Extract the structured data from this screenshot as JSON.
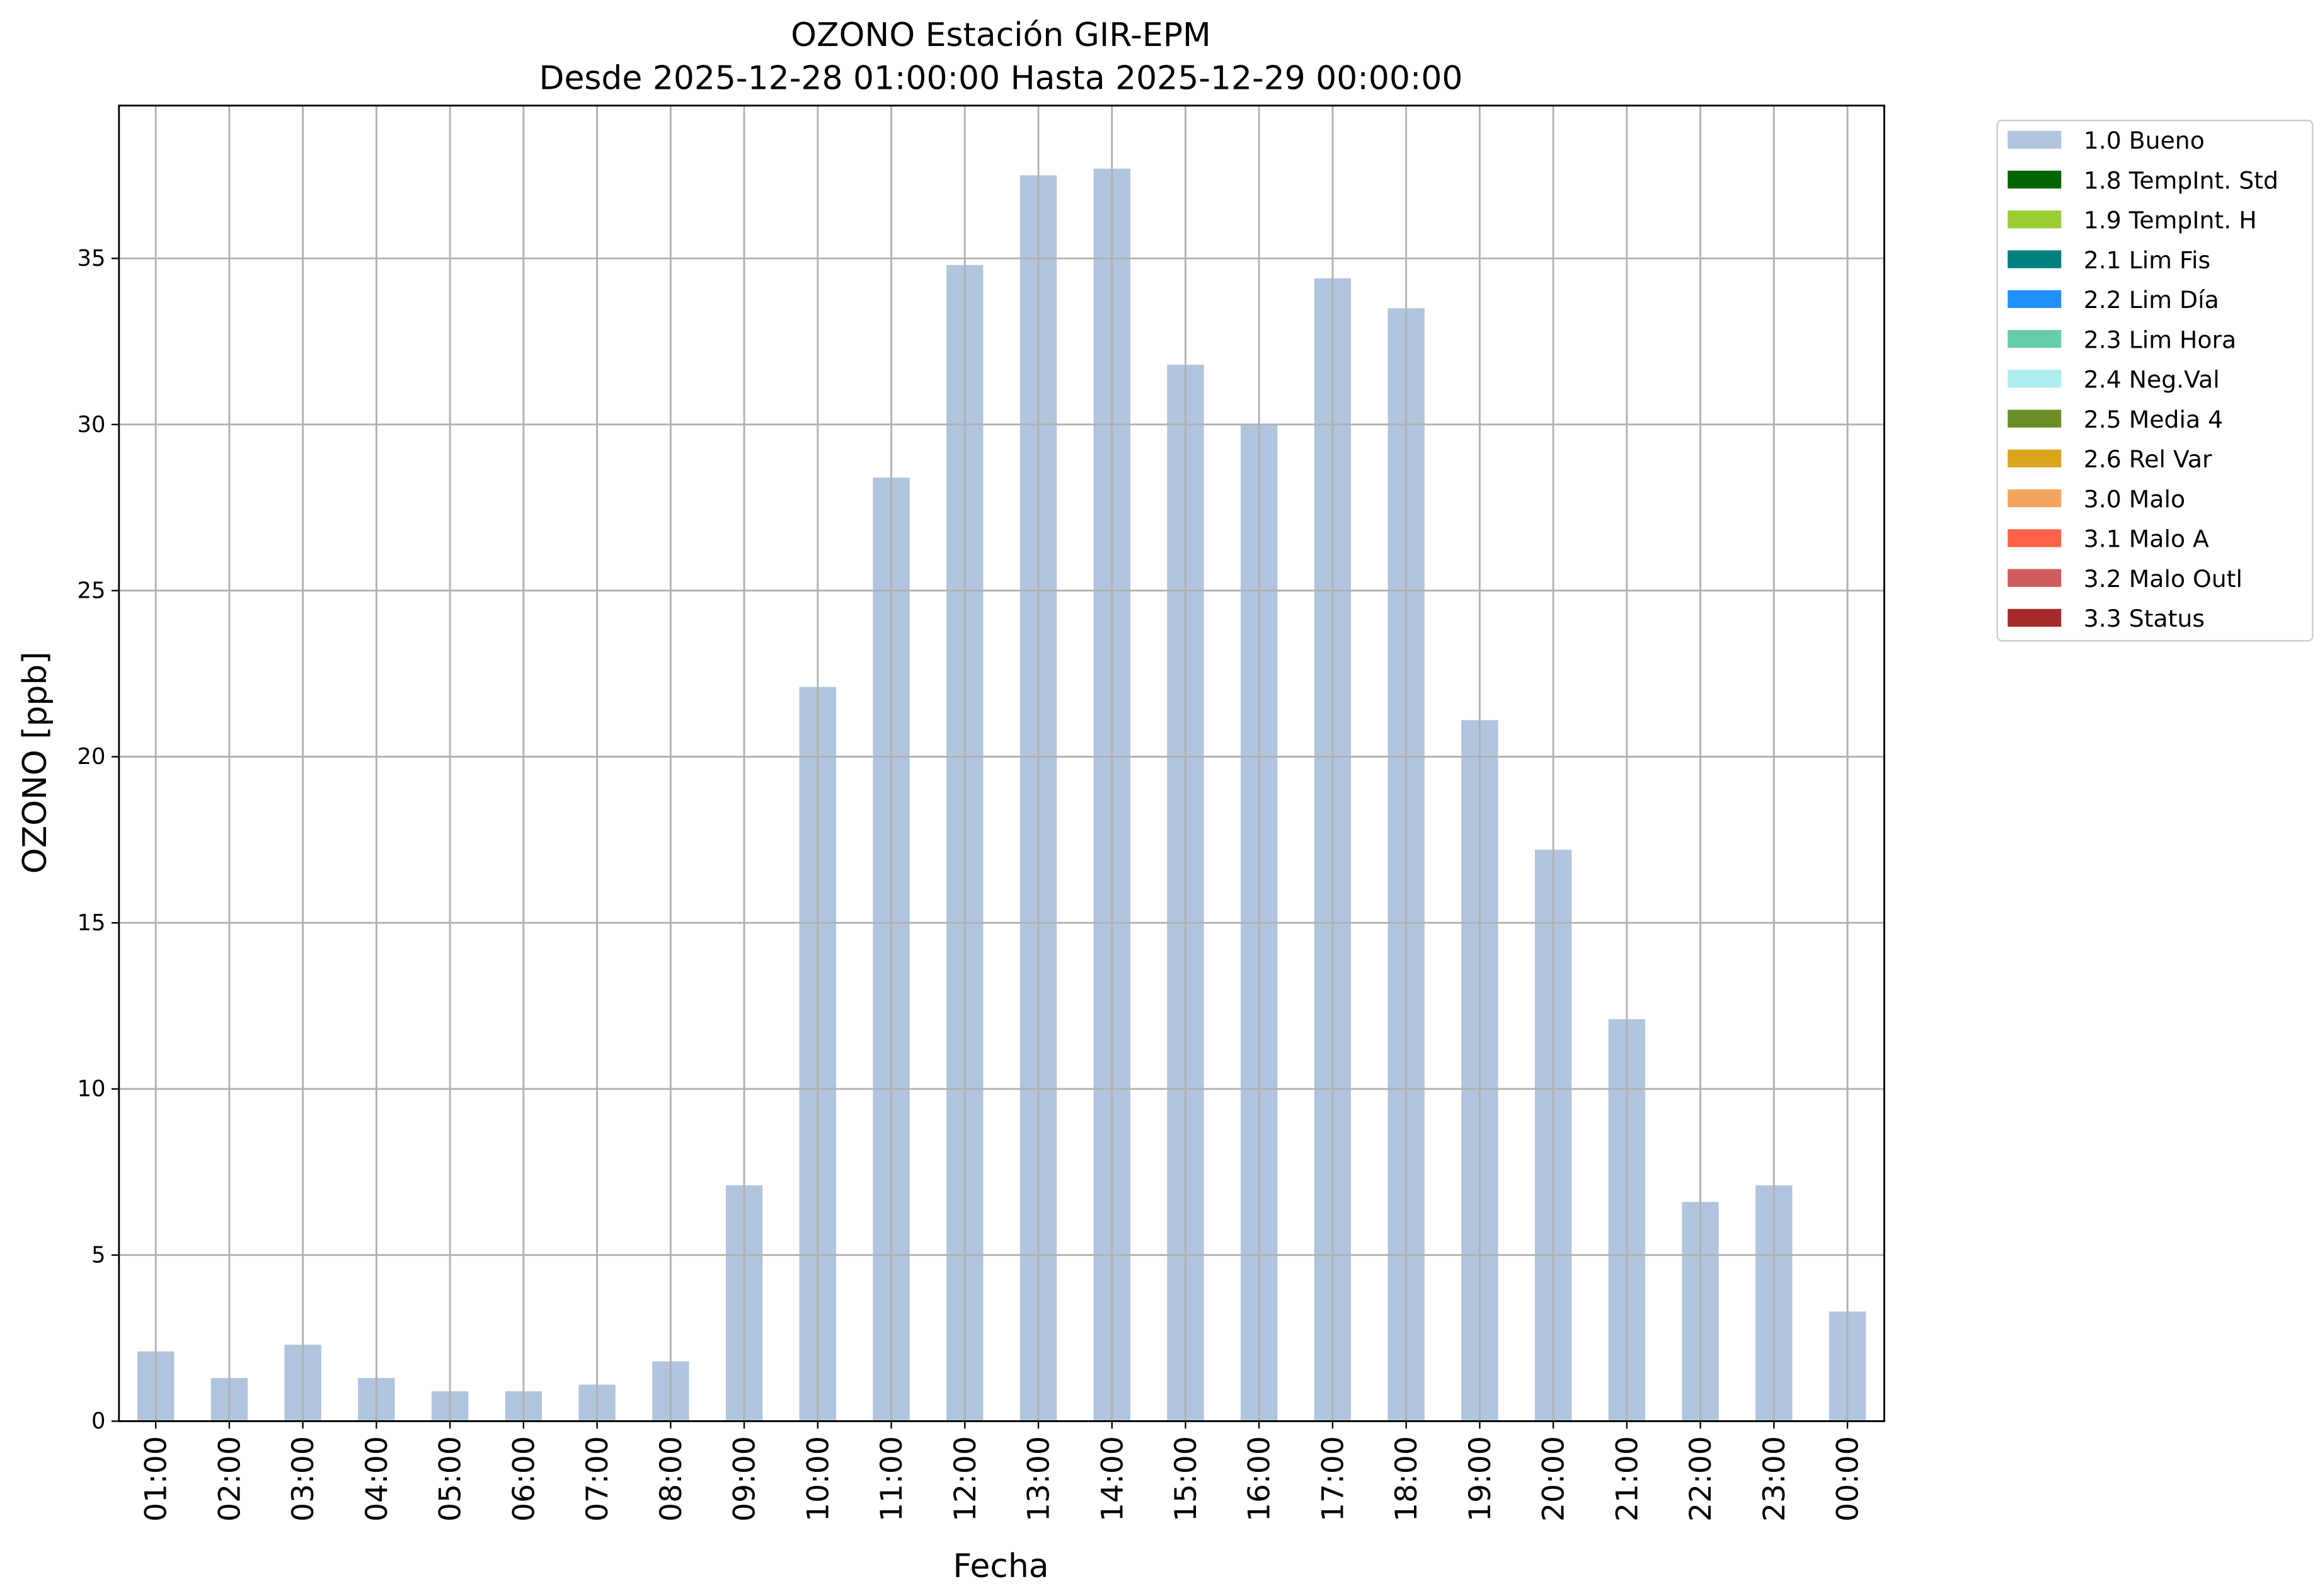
{
  "chart_data": {
    "type": "bar",
    "title": "OZONO Estación GIR-EPM",
    "subtitle": "Desde 2025-12-28 01:00:00 Hasta 2025-12-29 00:00:00",
    "xlabel": "Fecha",
    "ylabel": "OZONO [ppb]",
    "categories": [
      "01:00",
      "02:00",
      "03:00",
      "04:00",
      "05:00",
      "06:00",
      "07:00",
      "08:00",
      "09:00",
      "10:00",
      "11:00",
      "12:00",
      "13:00",
      "14:00",
      "15:00",
      "16:00",
      "17:00",
      "18:00",
      "19:00",
      "20:00",
      "21:00",
      "22:00",
      "23:00",
      "00:00"
    ],
    "series": [
      {
        "name": "1.0 Bueno",
        "color": "#b0c4de",
        "values": [
          2.1,
          1.3,
          2.3,
          1.3,
          0.9,
          0.9,
          1.1,
          1.8,
          7.1,
          22.1,
          28.4,
          34.8,
          37.5,
          37.7,
          31.8,
          30.0,
          34.4,
          33.5,
          21.1,
          17.2,
          12.1,
          6.6,
          7.1,
          3.3
        ]
      },
      {
        "name": "1.8 TempInt. Std",
        "color": "#006400"
      },
      {
        "name": "1.9 TempInt. H",
        "color": "#9acd32"
      },
      {
        "name": "2.1 Lim Fis",
        "color": "#008080"
      },
      {
        "name": "2.2 Lim Día",
        "color": "#1e90ff"
      },
      {
        "name": "2.3 Lim Hora",
        "color": "#66cdaa"
      },
      {
        "name": "2.4 Neg.Val",
        "color": "#afeeee"
      },
      {
        "name": "2.5 Media 4",
        "color": "#6b8e23"
      },
      {
        "name": "2.6 Rel Var",
        "color": "#daa520"
      },
      {
        "name": "3.0 Malo",
        "color": "#f4a460"
      },
      {
        "name": "3.1 Malo A",
        "color": "#ff6347"
      },
      {
        "name": "3.2 Malo Outl",
        "color": "#cd5c5c"
      },
      {
        "name": "3.3 Status",
        "color": "#a52a2a"
      }
    ],
    "ylim": [
      0,
      39.6
    ],
    "yticks": [
      0,
      5,
      10,
      15,
      20,
      25,
      30,
      35
    ],
    "grid": true,
    "legend": "outside upper right"
  }
}
